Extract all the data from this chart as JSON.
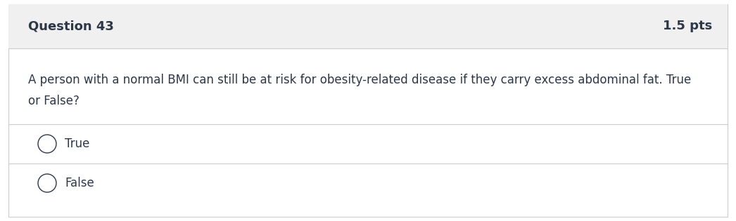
{
  "title_left": "Question 43",
  "title_right": "1.5 pts",
  "question_text_line1": "A person with a normal BMI can still be at risk for obesity-related disease if they carry excess abdominal fat. True",
  "question_text_line2": "or False?",
  "options": [
    "True",
    "False"
  ],
  "header_bg": "#f0f0f0",
  "body_bg": "#ffffff",
  "header_text_color": "#2d3748",
  "body_text_color": "#2d3748",
  "option_text_color": "#2d3748",
  "border_color": "#cccccc",
  "divider_color": "#cccccc",
  "header_font_size": 13,
  "points_font_size": 13,
  "question_font_size": 12,
  "option_font_size": 12,
  "fig_width": 10.46,
  "fig_height": 3.15
}
